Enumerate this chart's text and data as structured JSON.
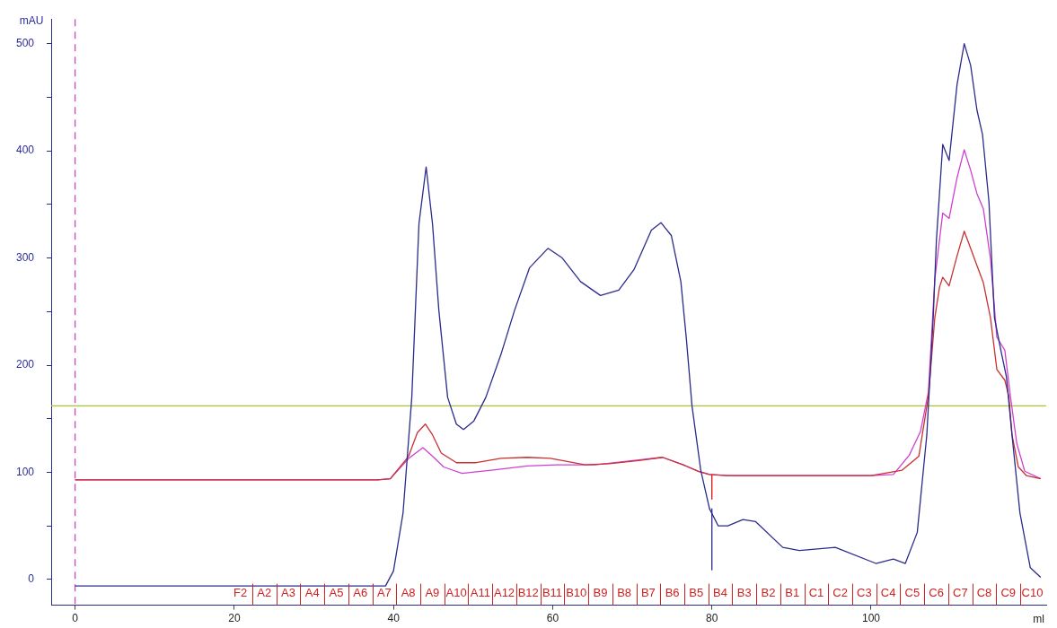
{
  "chart_data": {
    "type": "line",
    "xlabel": "ml",
    "ylabel": "mAU",
    "xlim": [
      -3,
      122
    ],
    "xticks": [
      0,
      20,
      40,
      60,
      80,
      100
    ],
    "ylim": [
      -24,
      523
    ],
    "yticks": [
      0,
      {
        "value": 50,
        "label": null
      },
      100,
      {
        "value": 150,
        "label": null
      },
      200,
      {
        "value": 250,
        "label": null
      },
      300,
      {
        "value": 350,
        "label": null
      },
      400,
      {
        "value": 450,
        "label": null
      },
      500
    ],
    "grid": false,
    "legend": false,
    "marker": "none",
    "line_style": "solid",
    "series": [
      {
        "color": "#2b2b8c",
        "x": [
          0,
          10,
          20,
          30,
          38,
          39,
          40,
          41.2,
          42.3,
          43.2,
          44.1,
          44.9,
          45.7,
          46.8,
          47.9,
          48.8,
          50.1,
          51.6,
          53.5,
          55.2,
          57.1,
          59.4,
          61.2,
          63.5,
          66,
          68.3,
          70.2,
          72.4,
          73.6,
          74.9,
          76.1,
          76.8,
          77.5,
          78.6,
          79.7,
          80.8,
          82,
          83.9,
          85.5,
          88.9,
          91,
          95.5,
          100.6,
          102.8,
          104.3,
          105.8,
          107,
          107.8,
          108.2,
          109,
          109.8,
          110.8,
          111.7,
          112.5,
          113.3,
          114,
          114.8,
          115.5,
          116.3,
          117,
          117.7,
          118.7,
          120,
          121.3
        ],
        "values": [
          -6,
          -6,
          -6,
          -6,
          -6,
          -6,
          8,
          62,
          170,
          332,
          385,
          332,
          251,
          170,
          145,
          140,
          148,
          170,
          210,
          251,
          291,
          309,
          300,
          278,
          265,
          270,
          289,
          326,
          333,
          321,
          278,
          224,
          162,
          102,
          66,
          50,
          50,
          56,
          54,
          30,
          27,
          30,
          15,
          19,
          15,
          44,
          135,
          244,
          316,
          406,
          391,
          462,
          500,
          480,
          438,
          415,
          353,
          244,
          214,
          189,
          135,
          62,
          11,
          2
        ]
      },
      {
        "color": "#c83232",
        "x": [
          0,
          10,
          20,
          30,
          38,
          39.6,
          41.9,
          43,
          44,
          44.9,
          46,
          47.9,
          50.4,
          53.5,
          56.8,
          59.7,
          64.1,
          67.1,
          70.8,
          73.8,
          76.4,
          78.3,
          79.7,
          82,
          90,
          100,
          103.9,
          106,
          107.2,
          108,
          108.6,
          109,
          109.8,
          110.8,
          111.7,
          112.5,
          113.3,
          114.1,
          115,
          115.8,
          116.8,
          117.3,
          117.7,
          118.5,
          119.5,
          121.3
        ],
        "values": [
          93,
          93,
          93,
          93,
          93,
          94,
          115,
          137,
          145,
          135,
          118,
          109,
          109,
          113,
          114,
          113,
          107,
          108,
          111,
          114,
          107,
          101,
          98,
          97,
          97,
          97,
          102,
          115,
          171,
          244,
          273,
          282,
          274,
          302,
          325,
          309,
          293,
          277,
          244,
          196,
          186,
          171,
          135,
          105,
          97,
          94
        ]
      },
      {
        "color": "#d040d0",
        "x": [
          0,
          10,
          20,
          30,
          38,
          39.6,
          41.9,
          43.7,
          44.9,
          46.3,
          48.6,
          52.3,
          56.8,
          60.5,
          65.3,
          68.8,
          73.8,
          76.4,
          78.3,
          79.7,
          82,
          90,
          100,
          102.8,
          104.8,
          106.2,
          107.2,
          108,
          109,
          109.8,
          110.8,
          111.7,
          112.5,
          113.3,
          114.1,
          115,
          115.8,
          116.8,
          117.5,
          118.3,
          119.3,
          121.3
        ],
        "values": [
          93,
          93,
          93,
          93,
          93,
          94,
          113,
          123,
          115,
          105,
          99,
          102,
          106,
          107,
          107,
          110,
          114,
          107,
          101,
          98,
          97,
          97,
          97,
          98,
          116,
          138,
          175,
          280,
          342,
          337,
          375,
          401,
          382,
          360,
          346,
          299,
          226,
          214,
          171,
          127,
          101,
          94
        ]
      },
      {
        "color": "#2b2b8c",
        "x": [
          80,
          80
        ],
        "values": [
          66,
          9
        ]
      },
      {
        "color": "#e01010",
        "x": [
          80,
          80
        ],
        "values": [
          98,
          75
        ]
      }
    ],
    "ref_lines": [
      {
        "axis": "y",
        "value": 162,
        "color": "#a8c832",
        "line_style": "solid"
      },
      {
        "axis": "x",
        "value": 0,
        "color": "#cc44cc",
        "line_style": "dashed"
      }
    ],
    "annotations": [
      "F2",
      "A2",
      "A3",
      "A4",
      "A5",
      "A6",
      "A7",
      "A8",
      "A9",
      "A10",
      "A11",
      "A12",
      "B12",
      "B11",
      "B10",
      "B9",
      "B8",
      "B7",
      "B6",
      "B5",
      "B4",
      "B3",
      "B2",
      "B1",
      "C1",
      "C2",
      "C3",
      "C4",
      "C5",
      "C6",
      "C7",
      "C8",
      "C9",
      "C10"
    ],
    "legend_title": null
  }
}
